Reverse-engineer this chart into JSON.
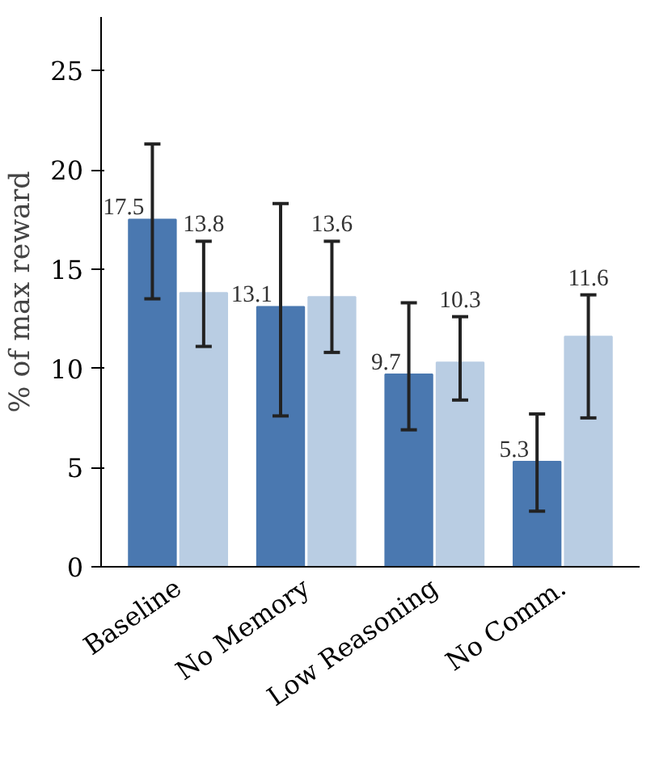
{
  "chart_data": {
    "type": "bar",
    "ylabel": "% of max reward",
    "categories": [
      "Baseline",
      "No Memory",
      "Low Reasoning",
      "No Comm."
    ],
    "series": [
      {
        "color": "#4a78b0",
        "values": [
          17.5,
          13.1,
          9.7,
          5.3
        ],
        "errors": [
          [
            13.5,
            21.3
          ],
          [
            7.6,
            18.3
          ],
          [
            6.9,
            13.3
          ],
          [
            2.8,
            7.7
          ]
        ]
      },
      {
        "color": "#b9cde3",
        "values": [
          13.8,
          13.6,
          10.3,
          11.6
        ],
        "errors": [
          [
            11.1,
            16.4
          ],
          [
            10.8,
            16.4
          ],
          [
            8.4,
            12.6
          ],
          [
            7.5,
            13.7
          ]
        ]
      }
    ],
    "ylim": [
      0,
      27.7
    ],
    "yticks": [
      0,
      5,
      10,
      15,
      20,
      25
    ],
    "data_labels": true,
    "grid": false
  }
}
